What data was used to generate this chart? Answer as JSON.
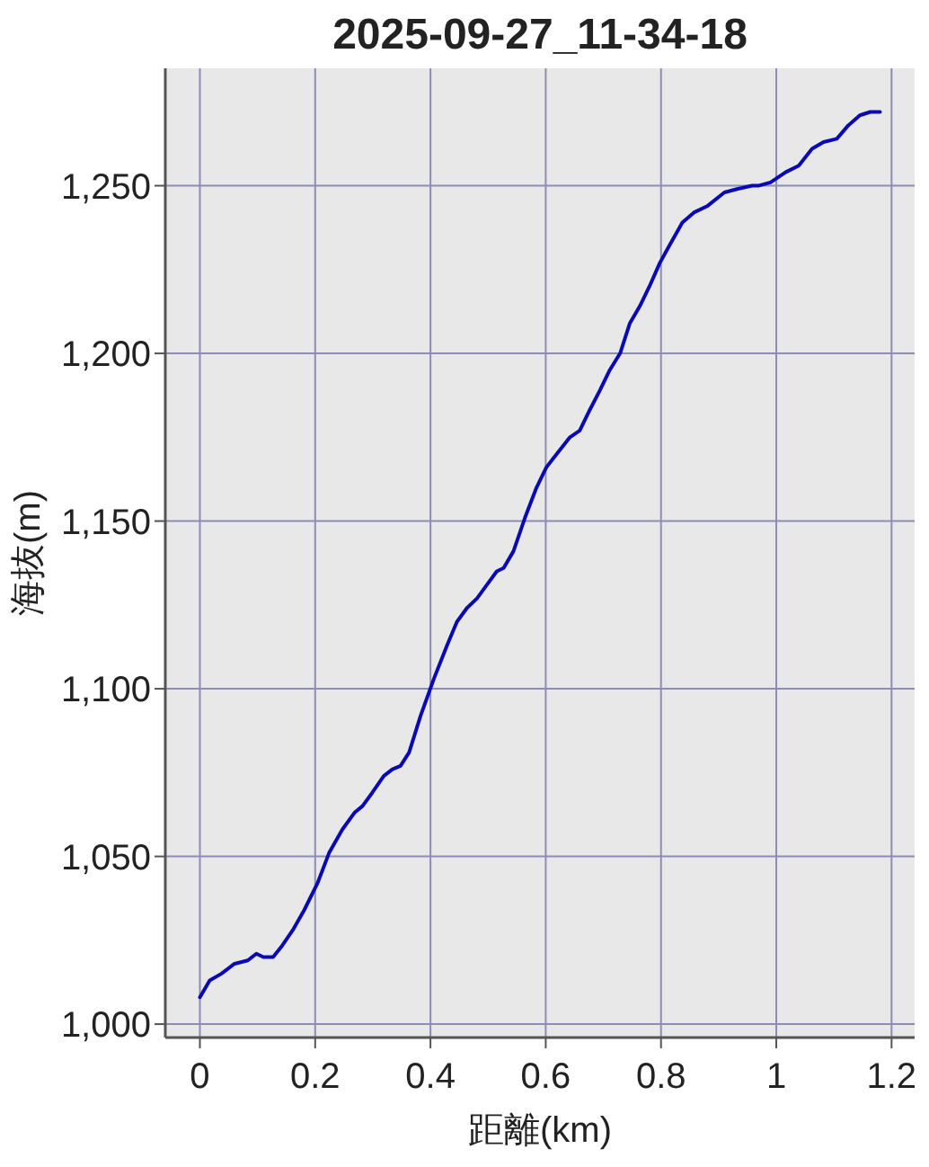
{
  "chart_data": {
    "type": "line",
    "title": "2025-09-27_11-34-18",
    "xlabel": "距離(km)",
    "ylabel": "海抜(m)",
    "x": [
      0,
      0.017,
      0.037,
      0.06,
      0.083,
      0.098,
      0.11,
      0.127,
      0.141,
      0.161,
      0.181,
      0.204,
      0.224,
      0.247,
      0.268,
      0.282,
      0.299,
      0.319,
      0.334,
      0.348,
      0.363,
      0.383,
      0.406,
      0.429,
      0.446,
      0.463,
      0.481,
      0.498,
      0.515,
      0.527,
      0.544,
      0.564,
      0.584,
      0.601,
      0.619,
      0.642,
      0.659,
      0.676,
      0.694,
      0.711,
      0.729,
      0.746,
      0.763,
      0.78,
      0.798,
      0.814,
      0.837,
      0.857,
      0.881,
      0.91,
      0.932,
      0.958,
      0.969,
      0.99,
      1.016,
      1.039,
      1.062,
      1.082,
      1.105,
      1.125,
      1.145,
      1.163,
      1.18
    ],
    "series": [
      {
        "color": "#0a0ab4",
        "values": [
          1008,
          1013,
          1015,
          1018,
          1019,
          1021,
          1020,
          1020,
          1023,
          1028,
          1034,
          1042,
          1051,
          1058,
          1063,
          1065,
          1069,
          1074,
          1076,
          1077,
          1081,
          1092,
          1103,
          1113,
          1120,
          1124,
          1127,
          1131,
          1135,
          1136,
          1141,
          1151,
          1160,
          1166,
          1170,
          1175,
          1177,
          1183,
          1189,
          1195,
          1200,
          1209,
          1214,
          1220,
          1227,
          1232,
          1239,
          1242,
          1244,
          1248,
          1249,
          1250,
          1250,
          1251,
          1254,
          1256,
          1261,
          1263,
          1264,
          1268,
          1271,
          1272,
          1272
        ]
      }
    ],
    "xlim": [
      -0.06,
      1.24
    ],
    "ylim": [
      996,
      1285
    ],
    "xticks": [
      0,
      0.2,
      0.4,
      0.6,
      0.8,
      1,
      1.2
    ],
    "yticks": [
      {
        "value": 1000,
        "label": "1,000"
      },
      {
        "value": 1050,
        "label": "1,050"
      },
      {
        "value": 1100,
        "label": "1,100"
      },
      {
        "value": 1150,
        "label": "1,150"
      },
      {
        "value": 1200,
        "label": "1,200"
      },
      {
        "value": 1250,
        "label": "1,250"
      }
    ],
    "grid": true,
    "marker": "none",
    "line_style": "solid"
  }
}
